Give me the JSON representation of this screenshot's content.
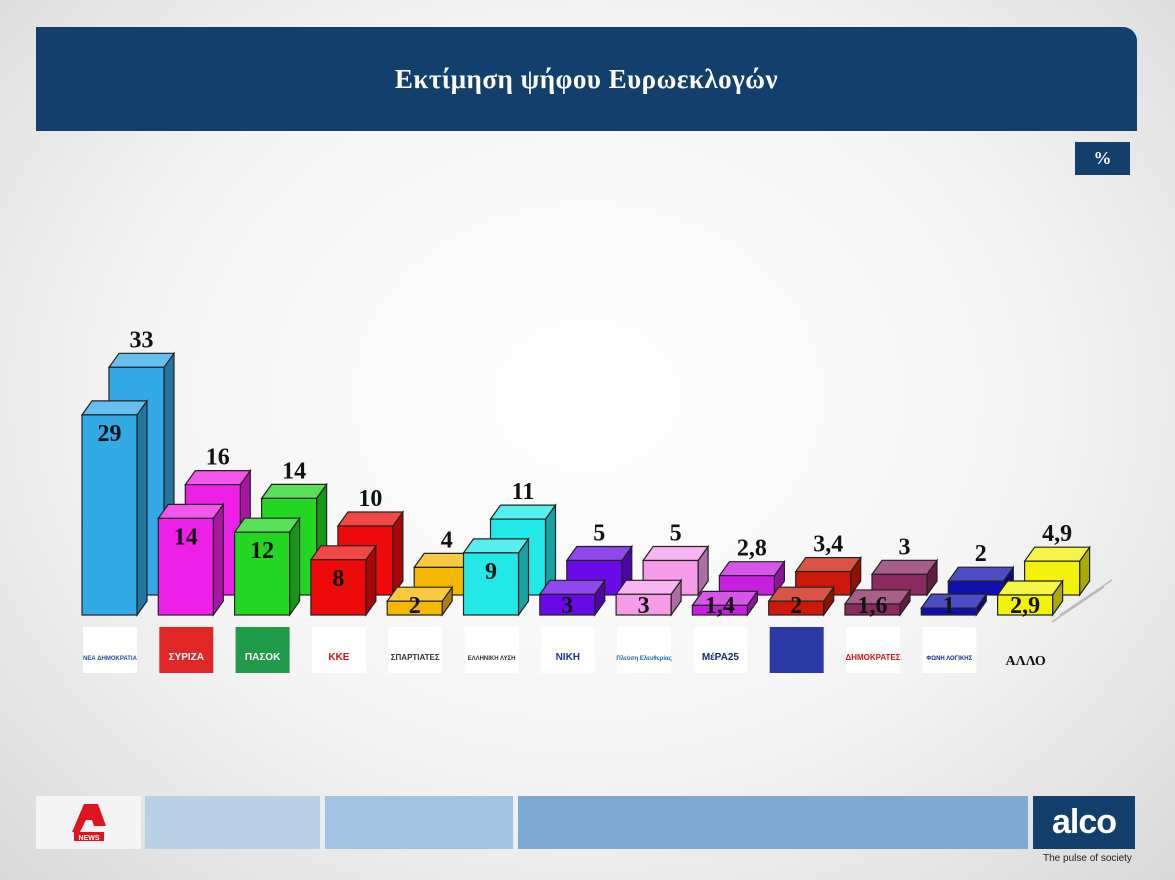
{
  "title": "Εκτίμηση ψήφου Ευρωεκλογών",
  "unit": "%",
  "colors": {
    "header_bg": "#123f6b",
    "badge_bg": "#123f6b",
    "footer_light": "#b9d0e6",
    "footer_mid": "#a3c3e3",
    "footer_dark": "#7fa9d3",
    "alco_bg": "#123f6b"
  },
  "footer": {
    "brand": "alco",
    "tagline": "The pulse of society",
    "channel_logo_text": "NEWS"
  },
  "chart_data": {
    "type": "bar",
    "title": "Εκτίμηση ψήφου Ευρωεκλογών",
    "unit": "%",
    "categories": [
      "ΝΕΑ ΔΗΜΟΚΡΑΤΙΑ",
      "ΣΥΡΙΖΑ",
      "ΠΑΣΟΚ",
      "ΚΚΕ",
      "ΣΠΑΡΤΙΑΤΕΣ",
      "ΕΛΛΗΝΙΚΗ ΛΥΣΗ",
      "ΝΙΚΗ",
      "Πλεύση Ελευθερίας",
      "ΜέΡΑ25",
      "",
      "ΔΗΜΟΚΡΑΤΕΣ",
      "ΦΩΝΗ ΛΟΓΙΚΗΣ",
      "ΑΛΛΟ"
    ],
    "colors": [
      "#33a9e6",
      "#ee1fe6",
      "#22d622",
      "#ee0a0a",
      "#f5b800",
      "#22e8e8",
      "#6a0ae8",
      "#f59be8",
      "#c81ee0",
      "#cc1a0a",
      "#8a2a60",
      "#1010b0",
      "#f2f20a"
    ],
    "series": [
      {
        "values": [
          29,
          14,
          12,
          8,
          2,
          9,
          3,
          3,
          1.4,
          2,
          1.6,
          1,
          2.9
        ],
        "labels": [
          "29",
          "14",
          "12",
          "8",
          "2",
          "9",
          "3",
          "3",
          "1,4",
          "2",
          "1,6",
          "1",
          "2,9"
        ]
      },
      {
        "values": [
          33,
          16,
          14,
          10,
          4,
          11,
          5,
          5,
          2.8,
          3.4,
          3,
          2,
          4.9
        ],
        "labels": [
          "33",
          "16",
          "14",
          "10",
          "4",
          "11",
          "5",
          "5",
          "2,8",
          "3,4",
          "3",
          "2",
          "4,9"
        ]
      }
    ],
    "logos": [
      "ΝΕΑ ΔΗΜΟΚΡΑΤΙΑ",
      "ΣΥΡΙΖΑ",
      "ΠΑΣΟΚ",
      "ΚΚΕ",
      "ΣΠΑΡΤΙΑΤΕΣ",
      "ΕΛΛΗΝΙΚΗ ΛΥΣΗ",
      "ΝΙΚΗ",
      "Πλεύση Ελευθερίας",
      "ΜέΡΑ25",
      "",
      "ΔΗΜΟΚΡΑΤΕΣ",
      "ΦΩΝΗ ΛΟΓΙΚΗΣ",
      "ΑΛΛΟ"
    ],
    "ylim": [
      0,
      35
    ],
    "grid": false,
    "legend": "none"
  }
}
